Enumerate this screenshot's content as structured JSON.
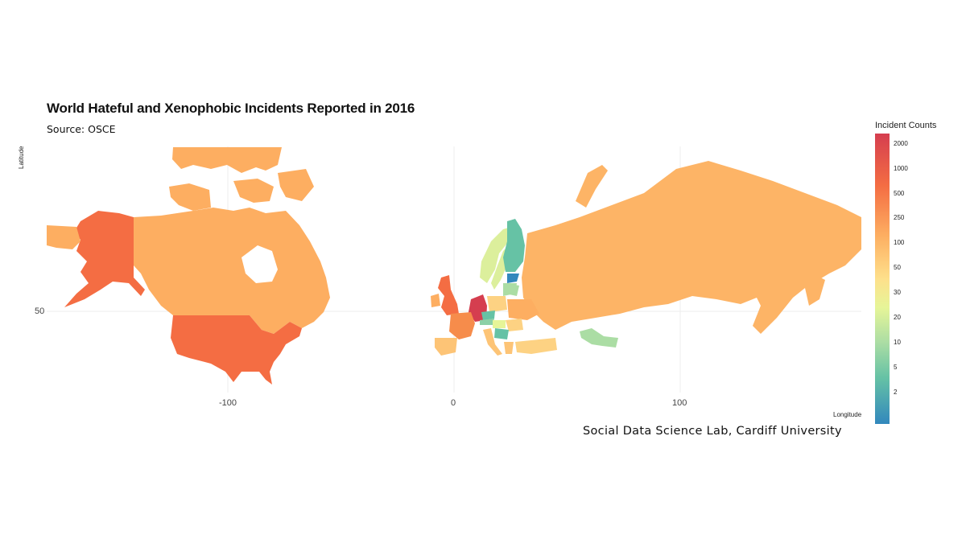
{
  "title": "World Hateful and Xenophobic Incidents Reported in 2016",
  "subtitle": "Source: OSCE",
  "caption": "Social Data Science Lab, Cardiff University",
  "axes": {
    "xlabel": "Longitude",
    "ylabel": "Latitude",
    "xticks": [
      "-100",
      "0",
      "100"
    ],
    "yticks": [
      "50"
    ]
  },
  "legend": {
    "title": "Incident Counts",
    "labels": [
      "2000",
      "1000",
      "500",
      "250",
      "100",
      "50",
      "30",
      "20",
      "10",
      "5",
      "2"
    ],
    "colors": {
      "high": "#d53e4f",
      "mid_high": "#f46d43",
      "mid": "#fdae61",
      "mid_low": "#fee08b",
      "low": "#abdda4",
      "lower": "#66c2a5",
      "lowest": "#3288bd"
    }
  },
  "regions": [
    {
      "name": "Alaska",
      "color": "#f46d43"
    },
    {
      "name": "Canada",
      "color": "#fdae61"
    },
    {
      "name": "Greenland",
      "color": "#fdae61"
    },
    {
      "name": "United States",
      "color": "#f46d43"
    },
    {
      "name": "United Kingdom",
      "color": "#f46d43"
    },
    {
      "name": "France",
      "color": "#f68c4b"
    },
    {
      "name": "Spain",
      "color": "#fdc476"
    },
    {
      "name": "Germany",
      "color": "#d53e4f"
    },
    {
      "name": "Norway",
      "color": "#dcef9c"
    },
    {
      "name": "Sweden",
      "color": "#dcef9c"
    },
    {
      "name": "Finland",
      "color": "#66c2a5"
    },
    {
      "name": "Estonia",
      "color": "#3288bd"
    },
    {
      "name": "Latvia",
      "color": "#abdda4"
    },
    {
      "name": "Poland",
      "color": "#fdd283"
    },
    {
      "name": "Czechia",
      "color": "#66c2a5"
    },
    {
      "name": "Austria",
      "color": "#8cd0a6"
    },
    {
      "name": "Hungary",
      "color": "#e6f598"
    },
    {
      "name": "Romania",
      "color": "#fdd283"
    },
    {
      "name": "Ukraine",
      "color": "#fdae61"
    },
    {
      "name": "Serbia",
      "color": "#66c2a5"
    },
    {
      "name": "Italy",
      "color": "#fdc476"
    },
    {
      "name": "Greece",
      "color": "#fdc476"
    },
    {
      "name": "Turkey",
      "color": "#fdd283"
    },
    {
      "name": "Kazakhstan",
      "color": "#abdda4"
    },
    {
      "name": "Russia",
      "color": "#fdb466"
    }
  ]
}
